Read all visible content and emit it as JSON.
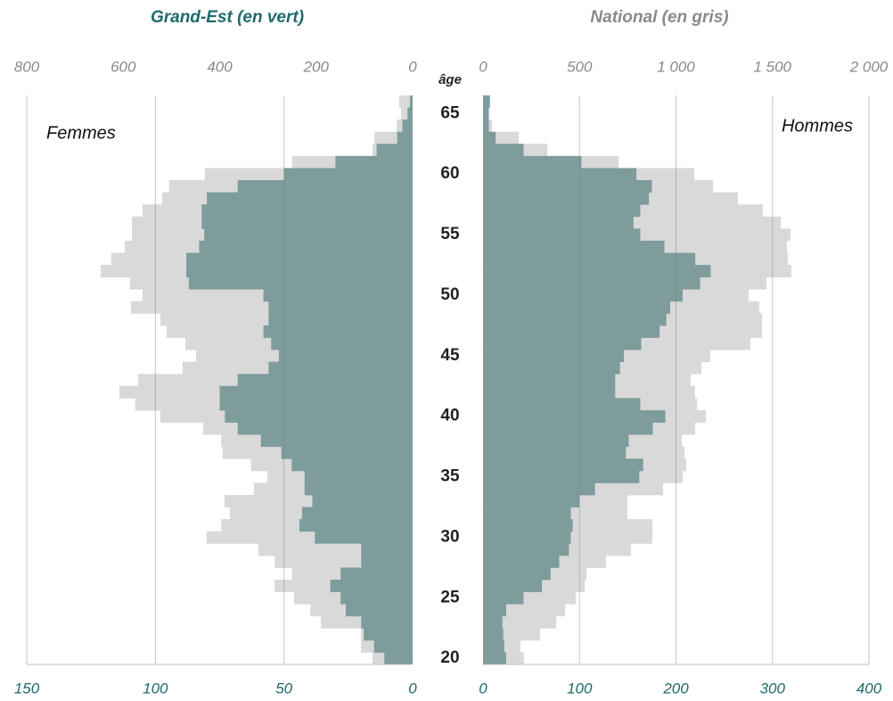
{
  "chart_data": {
    "type": "pyramid",
    "titles": [
      {
        "text": "Grand-Est (en vert)",
        "color": "#1e6a6a"
      },
      {
        "text": "National (en gris)",
        "color": "#8a8a8a"
      }
    ],
    "age_label": "âge",
    "categories": [
      20,
      null,
      null,
      null,
      null,
      25,
      null,
      null,
      null,
      null,
      30,
      null,
      null,
      null,
      null,
      35,
      null,
      null,
      null,
      null,
      40,
      null,
      null,
      null,
      null,
      45,
      null,
      null,
      null,
      null,
      50,
      null,
      null,
      null,
      null,
      55,
      null,
      null,
      null,
      null,
      60,
      null,
      null,
      null,
      null,
      65,
      null
    ],
    "grid": true,
    "panels": [
      {
        "name": "Femmes",
        "side": "left",
        "series": [
          {
            "color": "#d9d9d9",
            "axis": "top",
            "xlim": [
              0,
              800
            ],
            "xticks": [
              0,
              200,
              400,
              600,
              800
            ],
            "values": [
              83,
              107,
              107,
              190,
              212,
              246,
              286,
              250,
              286,
              320,
              427,
              397,
              379,
              390,
              329,
              301,
              335,
              394,
              397,
              434,
              523,
              575,
              608,
              569,
              477,
              449,
              471,
              510,
              523,
              584,
              560,
              586,
              647,
              625,
              597,
              582,
              582,
              560,
              519,
              505,
              431,
              250,
              83,
              79,
              33,
              24,
              28
            ]
          },
          {
            "color": "#7f9c9c",
            "axis": "bottom",
            "xlim": [
              0,
              150
            ],
            "xticks": [
              0,
              50,
              100,
              150
            ],
            "values": [
              11,
              15,
              19,
              20,
              26,
              28,
              32,
              28,
              20,
              20,
              38,
              44,
              43,
              39,
              42,
              42,
              47,
              51,
              59,
              68,
              73,
              75,
              75,
              68,
              56,
              52,
              55,
              58,
              56,
              56,
              58,
              87,
              88,
              88,
              83,
              81,
              82,
              82,
              80,
              68,
              50,
              30,
              14,
              6,
              4,
              2,
              1
            ]
          }
        ]
      },
      {
        "name": "Hommes",
        "side": "right",
        "series": [
          {
            "color": "#d9d9d9",
            "axis": "top",
            "xlim": [
              0,
              2000
            ],
            "xticks": [
              0,
              500,
              {
                "value": 1000,
                "label": "1 000"
              },
              {
                "value": 1500,
                "label": "1 500"
              },
              {
                "value": 2000,
                "label": "2 000"
              }
            ],
            "values": [
              212,
              194,
              296,
              379,
              425,
              480,
              527,
              536,
              637,
              767,
              878,
              878,
              748,
              748,
              933,
              1035,
              1053,
              1044,
              1030,
              1099,
              1155,
              1109,
              1099,
              1076,
              1132,
              1178,
              1386,
              1446,
              1446,
              1432,
              1376,
              1469,
              1598,
              1580,
              1575,
              1593,
              1543,
              1450,
              1321,
              1192,
              1095,
              702,
              333,
              185,
              46,
              28,
              37
            ]
          },
          {
            "color": "#7f9c9c",
            "axis": "bottom",
            "xlim": [
              0,
              400
            ],
            "xticks": [
              0,
              100,
              200,
              300,
              400
            ],
            "values": [
              24,
              22,
              21,
              20,
              24,
              42,
              61,
              70,
              79,
              89,
              91,
              93,
              91,
              100,
              116,
              162,
              166,
              148,
              151,
              176,
              189,
              163,
              137,
              137,
              142,
              146,
              164,
              183,
              190,
              194,
              207,
              225,
              236,
              220,
              188,
              163,
              156,
              163,
              172,
              175,
              159,
              102,
              42,
              13,
              6,
              6,
              7
            ]
          }
        ]
      }
    ]
  }
}
